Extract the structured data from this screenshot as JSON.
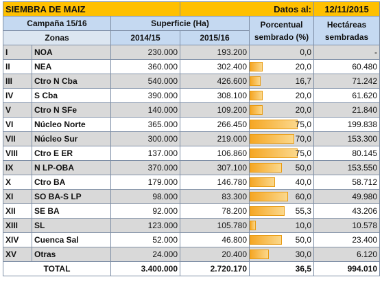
{
  "title": "SIEMBRA DE MAIZ",
  "date_label": "Datos al:",
  "date_value": "12/11/2015",
  "headers": {
    "campaign": "Campaña 15/16",
    "zones": "Zonas",
    "surface": "Superficie (Ha)",
    "y2014": "2014/15",
    "y2015": "2015/16",
    "pct": "Porcentual sembrado (%)",
    "hect": "Hectáreas sembradas"
  },
  "rows": [
    {
      "num": "I",
      "zone": "NOA",
      "s2014": "230.000",
      "s2015": "193.200",
      "pct": "0,0",
      "pct_value": 0,
      "hect": "-"
    },
    {
      "num": "II",
      "zone": "NEA",
      "s2014": "360.000",
      "s2015": "302.400",
      "pct": "20,0",
      "pct_value": 20,
      "hect": "60.480"
    },
    {
      "num": "III",
      "zone": "Ctro N Cba",
      "s2014": "540.000",
      "s2015": "426.600",
      "pct": "16,7",
      "pct_value": 16.7,
      "hect": "71.242"
    },
    {
      "num": "IV",
      "zone": "S Cba",
      "s2014": "390.000",
      "s2015": "308.100",
      "pct": "20,0",
      "pct_value": 20,
      "hect": "61.620"
    },
    {
      "num": "V",
      "zone": "Ctro N SFe",
      "s2014": "140.000",
      "s2015": "109.200",
      "pct": "20,0",
      "pct_value": 20,
      "hect": "21.840"
    },
    {
      "num": "VI",
      "zone": "Núcleo Norte",
      "s2014": "365.000",
      "s2015": "266.450",
      "pct": "75,0",
      "pct_value": 75,
      "hect": "199.838"
    },
    {
      "num": "VII",
      "zone": "Núcleo Sur",
      "s2014": "300.000",
      "s2015": "219.000",
      "pct": "70,0",
      "pct_value": 70,
      "hect": "153.300"
    },
    {
      "num": "VIII",
      "zone": "Ctro E ER",
      "s2014": "137.000",
      "s2015": "106.860",
      "pct": "75,0",
      "pct_value": 75,
      "hect": "80.145"
    },
    {
      "num": "IX",
      "zone": "N LP-OBA",
      "s2014": "370.000",
      "s2015": "307.100",
      "pct": "50,0",
      "pct_value": 50,
      "hect": "153.550"
    },
    {
      "num": "X",
      "zone": "Ctro BA",
      "s2014": "179.000",
      "s2015": "146.780",
      "pct": "40,0",
      "pct_value": 40,
      "hect": "58.712"
    },
    {
      "num": "XI",
      "zone": "SO BA-S LP",
      "s2014": "98.000",
      "s2015": "83.300",
      "pct": "60,0",
      "pct_value": 60,
      "hect": "49.980"
    },
    {
      "num": "XII",
      "zone": "SE BA",
      "s2014": "92.000",
      "s2015": "78.200",
      "pct": "55,3",
      "pct_value": 55.3,
      "hect": "43.206"
    },
    {
      "num": "XIII",
      "zone": "SL",
      "s2014": "123.000",
      "s2015": "105.780",
      "pct": "10,0",
      "pct_value": 10,
      "hect": "10.578"
    },
    {
      "num": "XIV",
      "zone": "Cuenca Sal",
      "s2014": "52.000",
      "s2015": "46.800",
      "pct": "50,0",
      "pct_value": 50,
      "hect": "23.400"
    },
    {
      "num": "XV",
      "zone": "Otras",
      "s2014": "24.000",
      "s2015": "20.400",
      "pct": "30,0",
      "pct_value": 30,
      "hect": "6.120"
    }
  ],
  "total": {
    "label": "TOTAL",
    "s2014": "3.400.000",
    "s2015": "2.720.170",
    "pct": "36,5",
    "pct_value": 36.5,
    "hect": "994.010"
  }
}
